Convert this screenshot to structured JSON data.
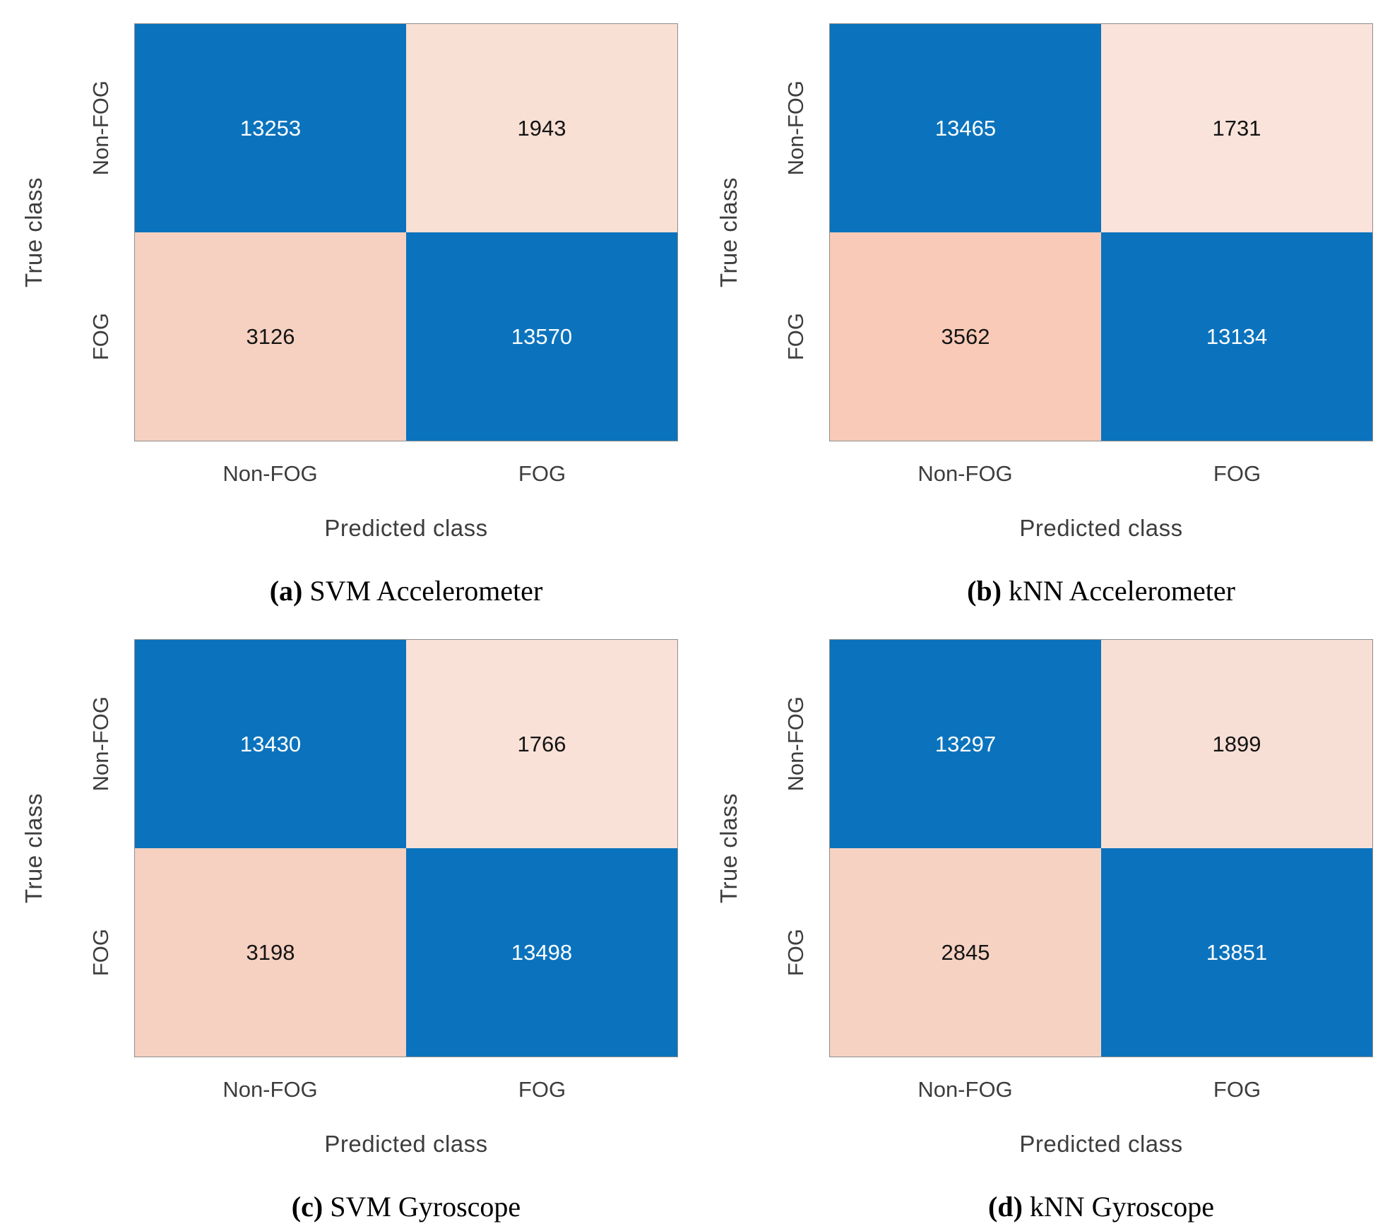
{
  "figure": {
    "ylabel": "True class",
    "xlabel": "Predicted class",
    "yticks": [
      "Non-FOG",
      "FOG"
    ],
    "xticks": [
      "Non-FOG",
      "FOG"
    ],
    "colors": {
      "diagonal_blue": "#0b73bd",
      "axis_text_gray": "#3d3d3d",
      "matrix_border_gray": "#8e8e8e",
      "caption_black": "#000000"
    },
    "panels": [
      {
        "marker": "(a)",
        "title": "SVM Accelerometer",
        "cells": [
          {
            "value": "13253",
            "bg": "#0b73bd",
            "fg": "#ffffff"
          },
          {
            "value": "1943",
            "bg": "#f8e0d5",
            "fg": "#141414"
          },
          {
            "value": "3126",
            "bg": "#f6d1c1",
            "fg": "#141414"
          },
          {
            "value": "13570",
            "bg": "#0b73bd",
            "fg": "#ffffff"
          }
        ]
      },
      {
        "marker": "(b)",
        "title": "kNN Accelerometer",
        "cells": [
          {
            "value": "13465",
            "bg": "#0b73bd",
            "fg": "#ffffff"
          },
          {
            "value": "1731",
            "bg": "#f9e3da",
            "fg": "#141414"
          },
          {
            "value": "3562",
            "bg": "#f8cab7",
            "fg": "#141414"
          },
          {
            "value": "13134",
            "bg": "#0b73bd",
            "fg": "#ffffff"
          }
        ]
      },
      {
        "marker": "(c)",
        "title": "SVM Gyroscope",
        "cells": [
          {
            "value": "13430",
            "bg": "#0b73bd",
            "fg": "#ffffff"
          },
          {
            "value": "1766",
            "bg": "#f9e1d7",
            "fg": "#141414"
          },
          {
            "value": "3198",
            "bg": "#f6d0c0",
            "fg": "#141414"
          },
          {
            "value": "13498",
            "bg": "#0b73bd",
            "fg": "#ffffff"
          }
        ]
      },
      {
        "marker": "(d)",
        "title": "kNN Gyroscope",
        "cells": [
          {
            "value": "13297",
            "bg": "#0b73bd",
            "fg": "#ffffff"
          },
          {
            "value": "1899",
            "bg": "#f8dfd5",
            "fg": "#141414"
          },
          {
            "value": "2845",
            "bg": "#f6d2c3",
            "fg": "#141414"
          },
          {
            "value": "13851",
            "bg": "#0b73bd",
            "fg": "#ffffff"
          }
        ]
      }
    ]
  },
  "chart_data": [
    {
      "type": "heatmap",
      "title": "(a) SVM Accelerometer",
      "xlabel": "Predicted class",
      "ylabel": "True class",
      "x_categories": [
        "Non-FOG",
        "FOG"
      ],
      "y_categories": [
        "Non-FOG",
        "FOG"
      ],
      "values": [
        [
          13253,
          1943
        ],
        [
          3126,
          13570
        ]
      ],
      "legend": "none",
      "grid": false
    },
    {
      "type": "heatmap",
      "title": "(b) kNN Accelerometer",
      "xlabel": "Predicted class",
      "ylabel": "True class",
      "x_categories": [
        "Non-FOG",
        "FOG"
      ],
      "y_categories": [
        "Non-FOG",
        "FOG"
      ],
      "values": [
        [
          13465,
          1731
        ],
        [
          3562,
          13134
        ]
      ],
      "legend": "none",
      "grid": false
    },
    {
      "type": "heatmap",
      "title": "(c) SVM Gyroscope",
      "xlabel": "Predicted class",
      "ylabel": "True class",
      "x_categories": [
        "Non-FOG",
        "FOG"
      ],
      "y_categories": [
        "Non-FOG",
        "FOG"
      ],
      "values": [
        [
          13430,
          1766
        ],
        [
          3198,
          13498
        ]
      ],
      "legend": "none",
      "grid": false
    },
    {
      "type": "heatmap",
      "title": "(d) kNN Gyroscope",
      "xlabel": "Predicted class",
      "ylabel": "True class",
      "x_categories": [
        "Non-FOG",
        "FOG"
      ],
      "y_categories": [
        "Non-FOG",
        "FOG"
      ],
      "values": [
        [
          13297,
          1899
        ],
        [
          2845,
          13851
        ]
      ],
      "legend": "none",
      "grid": false
    }
  ]
}
